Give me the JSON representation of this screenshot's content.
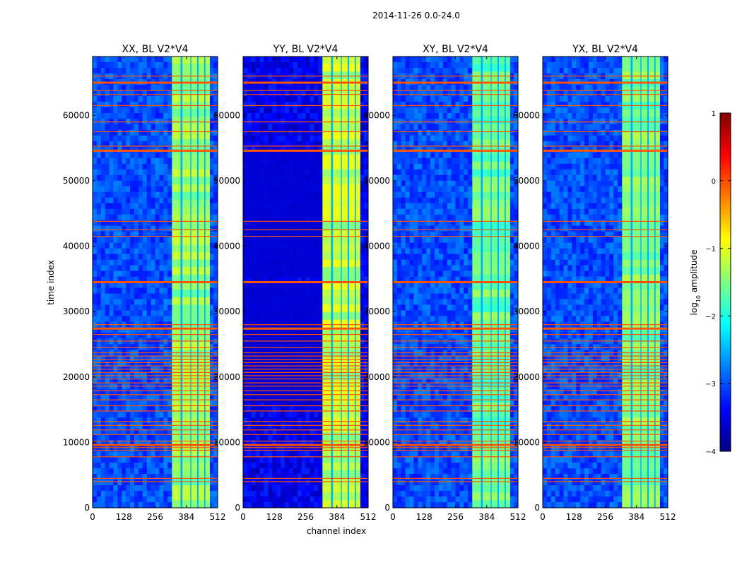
{
  "chart_data": {
    "type": "heatmap",
    "suptitle": "2014-11-26 0.0-24.0",
    "xlabel": "channel index",
    "ylabel": "time index",
    "xlim": [
      0,
      512
    ],
    "ylim": [
      0,
      69000
    ],
    "xticks": [
      0,
      128,
      256,
      384,
      512
    ],
    "yticks": [
      0,
      10000,
      20000,
      30000,
      40000,
      50000,
      60000
    ],
    "colorbar": {
      "label": "log",
      "label_sub": "10",
      "label_rest": " amplitude",
      "range": [
        -4,
        1
      ],
      "ticks": [
        1,
        0,
        -1,
        -2,
        -3,
        -4
      ],
      "tick_labels": [
        "1",
        "0",
        "−1",
        "−2",
        "−3",
        "−4"
      ],
      "colormap": "jet"
    },
    "panels": [
      {
        "title": "XX, BL V2*V4",
        "base": -3.0,
        "band": -1.4
      },
      {
        "title": "YY, BL V2*V4",
        "base": -3.45,
        "band": -1.2
      },
      {
        "title": "XY, BL V2*V4",
        "base": -3.0,
        "band": -1.6
      },
      {
        "title": "YX, BL V2*V4",
        "base": -3.0,
        "band": -1.5
      }
    ],
    "band_channels": [
      325,
      480
    ],
    "band_gap_channels": [
      [
        360,
        368
      ],
      [
        400,
        404
      ],
      [
        428,
        434
      ],
      [
        457,
        462
      ]
    ],
    "rfi_time_rows": [
      4000,
      4500,
      7800,
      8800,
      9200,
      9600,
      10200,
      11200,
      11900,
      12600,
      13200,
      14800,
      15600,
      16500,
      17300,
      17900,
      18600,
      19100,
      19700,
      20200,
      20700,
      21200,
      21700,
      22200,
      22700,
      23200,
      23700,
      24500,
      25500,
      26500,
      27400,
      28000,
      34500,
      41500,
      42500,
      43800,
      54600,
      55300,
      57500,
      59000,
      61500,
      63200,
      63800,
      65000,
      66000
    ],
    "dark_time_ranges": [
      [
        41000,
        54500
      ],
      [
        35200,
        41000
      ],
      [
        16000,
        34500
      ]
    ]
  }
}
